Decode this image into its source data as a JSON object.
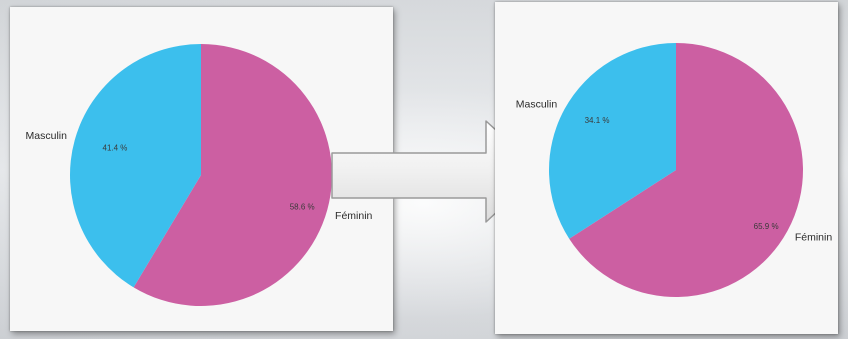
{
  "chart_data": [
    {
      "type": "pie",
      "categories": [
        "Masculin",
        "Féminin"
      ],
      "values": [
        41.4,
        58.6
      ],
      "data_labels": [
        "41.4 %",
        "58.6 %"
      ],
      "colors": [
        "#3cbfed",
        "#cc5fa2"
      ]
    },
    {
      "type": "pie",
      "categories": [
        "Masculin",
        "Féminin"
      ],
      "values": [
        34.1,
        65.9
      ],
      "data_labels": [
        "34.1 %",
        "65.9 %"
      ],
      "colors": [
        "#3cbfed",
        "#cc5fa2"
      ]
    }
  ],
  "transition_arrow": {
    "icon": "right-arrow-icon",
    "fill": "#f2f2f2"
  }
}
